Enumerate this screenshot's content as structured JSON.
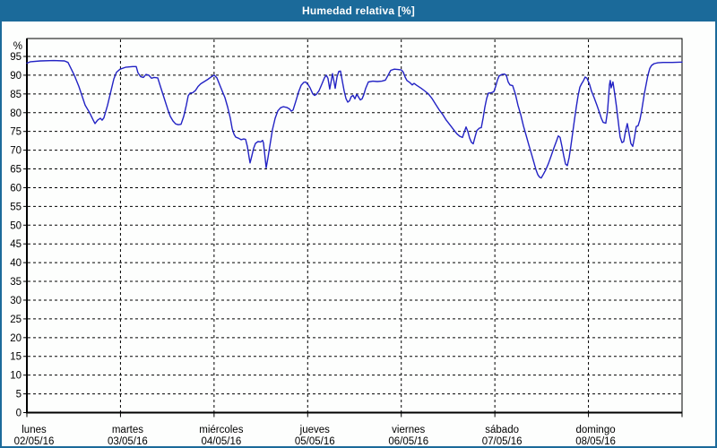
{
  "window": {
    "title": "Humedad relativa [%]"
  },
  "colors": {
    "header_bg": "#1b6a9a",
    "window_border": "#1b6a9a",
    "plot_bg": "#fdfefd",
    "axis": "#000000",
    "grid": "#000000",
    "tick_text": "#000000",
    "title_text": "#ffffff",
    "line": "#2222c4"
  },
  "chart_data": {
    "type": "line",
    "title": "Humedad relativa [%]",
    "ylabel": "%",
    "ylim": [
      0,
      100
    ],
    "ytick_step": 5,
    "yticks": [
      0,
      5,
      10,
      15,
      20,
      25,
      30,
      35,
      40,
      45,
      50,
      55,
      60,
      65,
      70,
      75,
      80,
      85,
      90,
      95
    ],
    "grid": "dashed-black",
    "legend": "none",
    "x_unit": "days",
    "x_range_days": 7,
    "x_ticks": [
      {
        "day": "lunes",
        "date": "02/05/16"
      },
      {
        "day": "martes",
        "date": "03/05/16"
      },
      {
        "day": "miércoles",
        "date": "04/05/16"
      },
      {
        "day": "jueves",
        "date": "05/05/16"
      },
      {
        "day": "viernes",
        "date": "06/05/16"
      },
      {
        "day": "sábado",
        "date": "07/05/16"
      },
      {
        "day": "domingo",
        "date": "08/05/16"
      }
    ],
    "series": [
      {
        "name": "Humedad relativa",
        "color": "#2222c4",
        "points": [
          [
            0.0,
            93.2
          ],
          [
            0.038,
            93.6
          ],
          [
            0.144,
            93.8
          ],
          [
            0.287,
            93.9
          ],
          [
            0.402,
            93.8
          ],
          [
            0.44,
            93.4
          ],
          [
            0.507,
            90.0
          ],
          [
            0.555,
            87.0
          ],
          [
            0.622,
            82.0
          ],
          [
            0.67,
            80.0
          ],
          [
            0.709,
            78.0
          ],
          [
            0.728,
            77.1
          ],
          [
            0.756,
            78.0
          ],
          [
            0.785,
            78.5
          ],
          [
            0.804,
            78.0
          ],
          [
            0.823,
            78.6
          ],
          [
            0.862,
            82.0
          ],
          [
            0.9,
            86.0
          ],
          [
            0.929,
            89.0
          ],
          [
            0.958,
            90.8
          ],
          [
            0.996,
            91.6
          ],
          [
            1.053,
            92.1
          ],
          [
            1.13,
            92.3
          ],
          [
            1.168,
            92.3
          ],
          [
            1.187,
            90.6
          ],
          [
            1.216,
            89.6
          ],
          [
            1.245,
            89.4
          ],
          [
            1.273,
            90.2
          ],
          [
            1.302,
            90.0
          ],
          [
            1.331,
            89.2
          ],
          [
            1.36,
            89.4
          ],
          [
            1.398,
            89.3
          ],
          [
            1.427,
            87.0
          ],
          [
            1.465,
            84.0
          ],
          [
            1.503,
            81.0
          ],
          [
            1.532,
            79.0
          ],
          [
            1.561,
            77.8
          ],
          [
            1.59,
            77.0
          ],
          [
            1.618,
            76.8
          ],
          [
            1.647,
            76.9
          ],
          [
            1.676,
            79.0
          ],
          [
            1.704,
            82.0
          ],
          [
            1.724,
            84.5
          ],
          [
            1.743,
            85.2
          ],
          [
            1.771,
            85.3
          ],
          [
            1.8,
            85.9
          ],
          [
            1.829,
            87.0
          ],
          [
            1.858,
            87.7
          ],
          [
            1.896,
            88.3
          ],
          [
            1.934,
            88.9
          ],
          [
            1.973,
            89.6
          ],
          [
            2.001,
            90.0
          ],
          [
            2.03,
            89.3
          ],
          [
            2.059,
            87.5
          ],
          [
            2.087,
            85.8
          ],
          [
            2.116,
            84.0
          ],
          [
            2.145,
            81.5
          ],
          [
            2.174,
            78.5
          ],
          [
            2.193,
            75.8
          ],
          [
            2.212,
            74.3
          ],
          [
            2.231,
            73.5
          ],
          [
            2.26,
            73.2
          ],
          [
            2.289,
            72.8
          ],
          [
            2.317,
            73.0
          ],
          [
            2.337,
            72.9
          ],
          [
            2.356,
            71.0
          ],
          [
            2.375,
            68.0
          ],
          [
            2.384,
            66.6
          ],
          [
            2.404,
            68.5
          ],
          [
            2.423,
            70.5
          ],
          [
            2.442,
            71.8
          ],
          [
            2.47,
            72.3
          ],
          [
            2.499,
            72.2
          ],
          [
            2.518,
            72.6
          ],
          [
            2.528,
            71.9
          ],
          [
            2.547,
            67.5
          ],
          [
            2.557,
            65.3
          ],
          [
            2.576,
            68.0
          ],
          [
            2.595,
            71.0
          ],
          [
            2.624,
            75.5
          ],
          [
            2.653,
            78.5
          ],
          [
            2.681,
            80.5
          ],
          [
            2.71,
            81.3
          ],
          [
            2.739,
            81.6
          ],
          [
            2.777,
            81.4
          ],
          [
            2.806,
            81.0
          ],
          [
            2.825,
            80.4
          ],
          [
            2.844,
            80.7
          ],
          [
            2.873,
            83.0
          ],
          [
            2.902,
            85.5
          ],
          [
            2.93,
            87.3
          ],
          [
            2.959,
            88.1
          ],
          [
            2.978,
            88.2
          ],
          [
            3.007,
            87.4
          ],
          [
            3.026,
            86.6
          ],
          [
            3.055,
            85.0
          ],
          [
            3.074,
            84.6
          ],
          [
            3.093,
            84.9
          ],
          [
            3.122,
            85.9
          ],
          [
            3.15,
            87.5
          ],
          [
            3.179,
            89.3
          ],
          [
            3.198,
            90.0
          ],
          [
            3.217,
            89.2
          ],
          [
            3.236,
            86.3
          ],
          [
            3.256,
            89.0
          ],
          [
            3.265,
            90.4
          ],
          [
            3.284,
            88.0
          ],
          [
            3.294,
            86.5
          ],
          [
            3.313,
            89.5
          ],
          [
            3.332,
            91.0
          ],
          [
            3.351,
            91.1
          ],
          [
            3.37,
            88.5
          ],
          [
            3.39,
            85.8
          ],
          [
            3.409,
            83.8
          ],
          [
            3.428,
            82.8
          ],
          [
            3.447,
            83.2
          ],
          [
            3.466,
            84.3
          ],
          [
            3.485,
            84.6
          ],
          [
            3.505,
            83.7
          ],
          [
            3.524,
            84.9
          ],
          [
            3.543,
            84.2
          ],
          [
            3.562,
            83.4
          ],
          [
            3.581,
            83.7
          ],
          [
            3.6,
            84.8
          ],
          [
            3.62,
            86.5
          ],
          [
            3.648,
            88.2
          ],
          [
            3.696,
            88.4
          ],
          [
            3.744,
            88.3
          ],
          [
            3.792,
            88.4
          ],
          [
            3.83,
            88.7
          ],
          [
            3.859,
            90.0
          ],
          [
            3.888,
            91.3
          ],
          [
            3.926,
            91.6
          ],
          [
            3.964,
            91.5
          ],
          [
            4.002,
            91.4
          ],
          [
            4.022,
            90.8
          ],
          [
            4.041,
            89.5
          ],
          [
            4.06,
            88.6
          ],
          [
            4.089,
            88.1
          ],
          [
            4.117,
            87.4
          ],
          [
            4.137,
            87.8
          ],
          [
            4.165,
            87.3
          ],
          [
            4.213,
            86.5
          ],
          [
            4.251,
            85.8
          ],
          [
            4.29,
            85.0
          ],
          [
            4.328,
            83.8
          ],
          [
            4.366,
            82.3
          ],
          [
            4.404,
            80.8
          ],
          [
            4.443,
            79.5
          ],
          [
            4.481,
            78.0
          ],
          [
            4.519,
            76.8
          ],
          [
            4.558,
            75.5
          ],
          [
            4.596,
            74.3
          ],
          [
            4.625,
            73.7
          ],
          [
            4.654,
            73.4
          ],
          [
            4.673,
            74.8
          ],
          [
            4.692,
            76.2
          ],
          [
            4.711,
            75.0
          ],
          [
            4.73,
            73.3
          ],
          [
            4.75,
            72.1
          ],
          [
            4.769,
            71.7
          ],
          [
            4.788,
            73.5
          ],
          [
            4.807,
            75.2
          ],
          [
            4.836,
            75.9
          ],
          [
            4.855,
            76.0
          ],
          [
            4.874,
            78.5
          ],
          [
            4.893,
            81.5
          ],
          [
            4.912,
            83.8
          ],
          [
            4.931,
            85.2
          ],
          [
            4.96,
            85.3
          ],
          [
            4.989,
            85.6
          ],
          [
            5.008,
            87.0
          ],
          [
            5.027,
            88.7
          ],
          [
            5.046,
            89.8
          ],
          [
            5.075,
            90.2
          ],
          [
            5.104,
            90.3
          ],
          [
            5.123,
            89.9
          ],
          [
            5.142,
            88.2
          ],
          [
            5.161,
            87.4
          ],
          [
            5.19,
            87.2
          ],
          [
            5.219,
            85.0
          ],
          [
            5.247,
            82.0
          ],
          [
            5.276,
            79.5
          ],
          [
            5.305,
            76.5
          ],
          [
            5.334,
            74.0
          ],
          [
            5.362,
            71.5
          ],
          [
            5.391,
            69.0
          ],
          [
            5.42,
            66.5
          ],
          [
            5.439,
            64.8
          ],
          [
            5.458,
            63.5
          ],
          [
            5.477,
            62.8
          ],
          [
            5.496,
            62.6
          ],
          [
            5.515,
            63.4
          ],
          [
            5.544,
            64.8
          ],
          [
            5.573,
            66.5
          ],
          [
            5.602,
            68.5
          ],
          [
            5.63,
            70.5
          ],
          [
            5.659,
            72.5
          ],
          [
            5.678,
            73.8
          ],
          [
            5.697,
            73.4
          ],
          [
            5.717,
            71.0
          ],
          [
            5.736,
            68.5
          ],
          [
            5.755,
            66.3
          ],
          [
            5.774,
            65.9
          ],
          [
            5.793,
            68.0
          ],
          [
            5.812,
            71.0
          ],
          [
            5.831,
            74.5
          ],
          [
            5.85,
            78.0
          ],
          [
            5.87,
            81.5
          ],
          [
            5.889,
            84.5
          ],
          [
            5.908,
            86.8
          ],
          [
            5.927,
            87.7
          ],
          [
            5.946,
            88.5
          ],
          [
            5.965,
            89.5
          ],
          [
            5.984,
            89.2
          ],
          [
            6.013,
            87.5
          ],
          [
            6.032,
            85.8
          ],
          [
            6.061,
            84.0
          ],
          [
            6.09,
            82.0
          ],
          [
            6.118,
            80.0
          ],
          [
            6.137,
            78.5
          ],
          [
            6.157,
            77.4
          ],
          [
            6.185,
            77.2
          ],
          [
            6.204,
            80.5
          ],
          [
            6.224,
            87.4
          ],
          [
            6.233,
            88.6
          ],
          [
            6.243,
            86.6
          ],
          [
            6.262,
            88.2
          ],
          [
            6.281,
            85.0
          ],
          [
            6.3,
            81.5
          ],
          [
            6.319,
            77.5
          ],
          [
            6.338,
            73.5
          ],
          [
            6.358,
            72.0
          ],
          [
            6.377,
            72.3
          ],
          [
            6.396,
            75.0
          ],
          [
            6.415,
            77.1
          ],
          [
            6.434,
            74.5
          ],
          [
            6.453,
            71.8
          ],
          [
            6.473,
            71.0
          ],
          [
            6.492,
            73.5
          ],
          [
            6.511,
            76.3
          ],
          [
            6.53,
            76.5
          ],
          [
            6.549,
            78.0
          ],
          [
            6.568,
            80.5
          ],
          [
            6.597,
            85.0
          ],
          [
            6.616,
            87.5
          ],
          [
            6.635,
            90.0
          ],
          [
            6.655,
            91.8
          ],
          [
            6.674,
            92.6
          ],
          [
            6.702,
            93.1
          ],
          [
            6.741,
            93.3
          ],
          [
            6.798,
            93.4
          ],
          [
            6.894,
            93.4
          ],
          [
            7.0,
            93.5
          ]
        ]
      }
    ]
  }
}
